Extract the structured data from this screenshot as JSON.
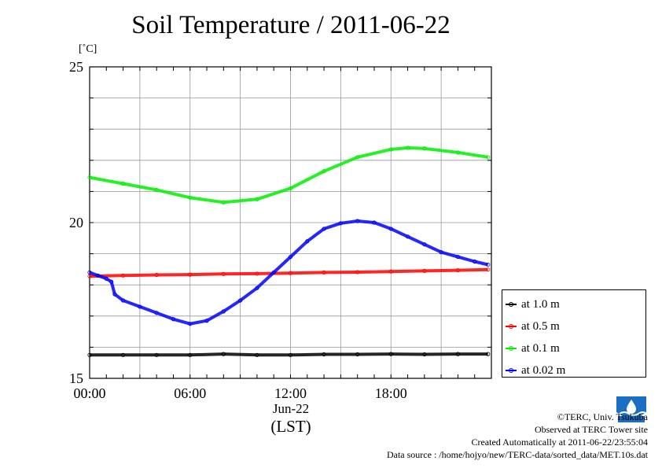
{
  "title": "Soil Temperature / 2011-06-22",
  "unit_label": "[˚C]",
  "x_date_label": "Jun-22",
  "x_timezone_label": "(LST)",
  "credits": {
    "copyright": "©TERC, Univ. Tsukuba",
    "site": "Observed at TERC Tower site",
    "created": "Created Automatically at 2011-06-22/23:55:04",
    "source": "Data source : /home/hojyo/new/TERC-data/sorted_data/MET.10s.dat"
  },
  "logo_text": "TERC",
  "chart_data": {
    "type": "line",
    "ylim": [
      15,
      25
    ],
    "xlim": [
      0,
      24
    ],
    "y_ticks": [
      15,
      20,
      25
    ],
    "x_ticks": [
      0,
      6,
      12,
      18
    ],
    "x_tick_labels": [
      "00:00",
      "06:00",
      "12:00",
      "18:00"
    ],
    "grid": true,
    "legend_position": "right, lower",
    "series": [
      {
        "name": "at 1.0 m",
        "color": "#000000",
        "x": [
          0,
          2,
          4,
          6,
          8,
          10,
          12,
          14,
          16,
          18,
          20,
          22,
          23.8
        ],
        "y": [
          15.75,
          15.75,
          15.75,
          15.75,
          15.78,
          15.75,
          15.75,
          15.77,
          15.77,
          15.78,
          15.77,
          15.78,
          15.78
        ]
      },
      {
        "name": "at 0.5 m",
        "color": "#ff0000",
        "x": [
          0,
          2,
          4,
          6,
          8,
          10,
          12,
          14,
          16,
          18,
          20,
          22,
          23.8
        ],
        "y": [
          18.28,
          18.3,
          18.32,
          18.33,
          18.35,
          18.36,
          18.38,
          18.4,
          18.41,
          18.43,
          18.45,
          18.47,
          18.49
        ]
      },
      {
        "name": "at 0.1 m",
        "color": "#00ee00",
        "x": [
          0,
          2,
          4,
          6,
          8,
          10,
          12,
          14,
          16,
          18,
          19,
          20,
          22,
          23.8
        ],
        "y": [
          21.45,
          21.25,
          21.05,
          20.8,
          20.65,
          20.75,
          21.1,
          21.65,
          22.1,
          22.35,
          22.4,
          22.38,
          22.25,
          22.1
        ]
      },
      {
        "name": "at 0.02 m",
        "color": "#0000ff",
        "x": [
          0,
          0.5,
          1,
          1.3,
          1.5,
          2,
          3,
          4,
          5,
          6,
          7,
          8,
          9,
          10,
          11,
          12,
          13,
          14,
          15,
          16,
          17,
          18,
          19,
          20,
          21,
          22,
          23,
          23.8
        ],
        "y": [
          18.4,
          18.3,
          18.2,
          18.1,
          17.7,
          17.5,
          17.3,
          17.1,
          16.9,
          16.75,
          16.85,
          17.15,
          17.5,
          17.9,
          18.4,
          18.9,
          19.4,
          19.8,
          19.98,
          20.05,
          20.0,
          19.8,
          19.55,
          19.3,
          19.05,
          18.9,
          18.75,
          18.65
        ]
      }
    ]
  }
}
